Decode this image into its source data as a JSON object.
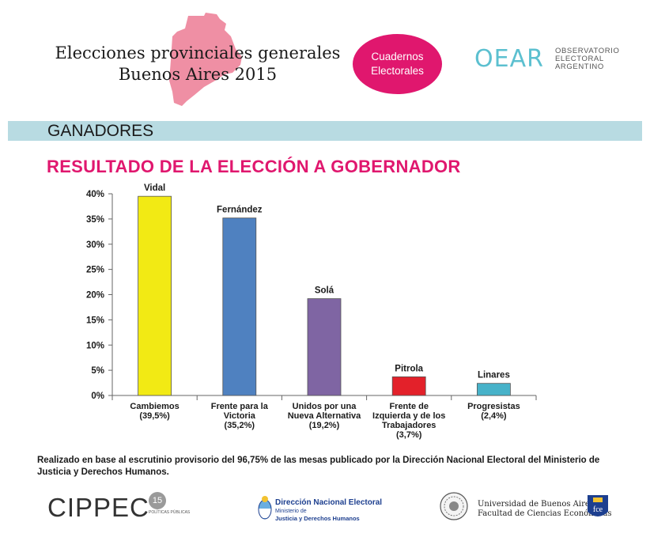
{
  "header": {
    "title_line1": "Elecciones provinciales generales",
    "title_line2": "Buenos Aires 2015",
    "badge_line1": "Cuadernos",
    "badge_line2": "Electorales",
    "oear_logo": "OEAR",
    "oear_line1": "OBSERVATORIO",
    "oear_line2": "ELECTORAL",
    "oear_line3": "ARGENTINO"
  },
  "section": {
    "label": "GANADORES"
  },
  "colors": {
    "accent": "#e0176e",
    "band": "#b8dbe2",
    "map": "#ef8fa4",
    "oear": "#5cc0d0"
  },
  "chart_data": {
    "type": "bar",
    "title": "RESULTADO DE LA ELECCIÓN A GOBERNADOR",
    "ylim": [
      0,
      40
    ],
    "yticks": [
      0,
      5,
      10,
      15,
      20,
      25,
      30,
      35,
      40
    ],
    "ytick_labels": [
      "0%",
      "5%",
      "10%",
      "15%",
      "20%",
      "25%",
      "30%",
      "35%",
      "40%"
    ],
    "xlabel": "",
    "ylabel": "",
    "bars": [
      {
        "category": [
          "Cambiemos",
          "(39,5%)"
        ],
        "value": 39.5,
        "label": "Vidal",
        "color": "#f2ea14"
      },
      {
        "category": [
          "Frente para la",
          "Victoria",
          "(35,2%)"
        ],
        "value": 35.2,
        "label": "Fernández",
        "color": "#4f81c0"
      },
      {
        "category": [
          "Unidos por una",
          "Nueva Alternativa",
          "(19,2%)"
        ],
        "value": 19.2,
        "label": "Solá",
        "color": "#7f65a3"
      },
      {
        "category": [
          "Frente de",
          "Izquierda y de los",
          "Trabajadores",
          "(3,7%)"
        ],
        "value": 3.7,
        "label": "Pitrola",
        "color": "#e3212a"
      },
      {
        "category": [
          "Progresistas",
          "(2,4%)"
        ],
        "value": 2.4,
        "label": "Linares",
        "color": "#47b2c9"
      }
    ]
  },
  "footnote": "Realizado en base al escrutinio provisorio del 96,75% de las mesas publicado por la Dirección Nacional Electoral del Ministerio de Justicia y Derechos Humanos.",
  "footer": {
    "cippec": "CIPPEC",
    "cippec_badge": "15",
    "cippec_small": "POLÍTICAS PÚBLICAS",
    "dne_title": "Dirección Nacional Electoral",
    "dne_sub1": "Ministerio de",
    "dne_sub2": "Justicia y Derechos Humanos",
    "uba_line1": "Universidad de Buenos Aires",
    "uba_line2": "Facultad de Ciencias Económicas",
    "fce": "fce"
  }
}
